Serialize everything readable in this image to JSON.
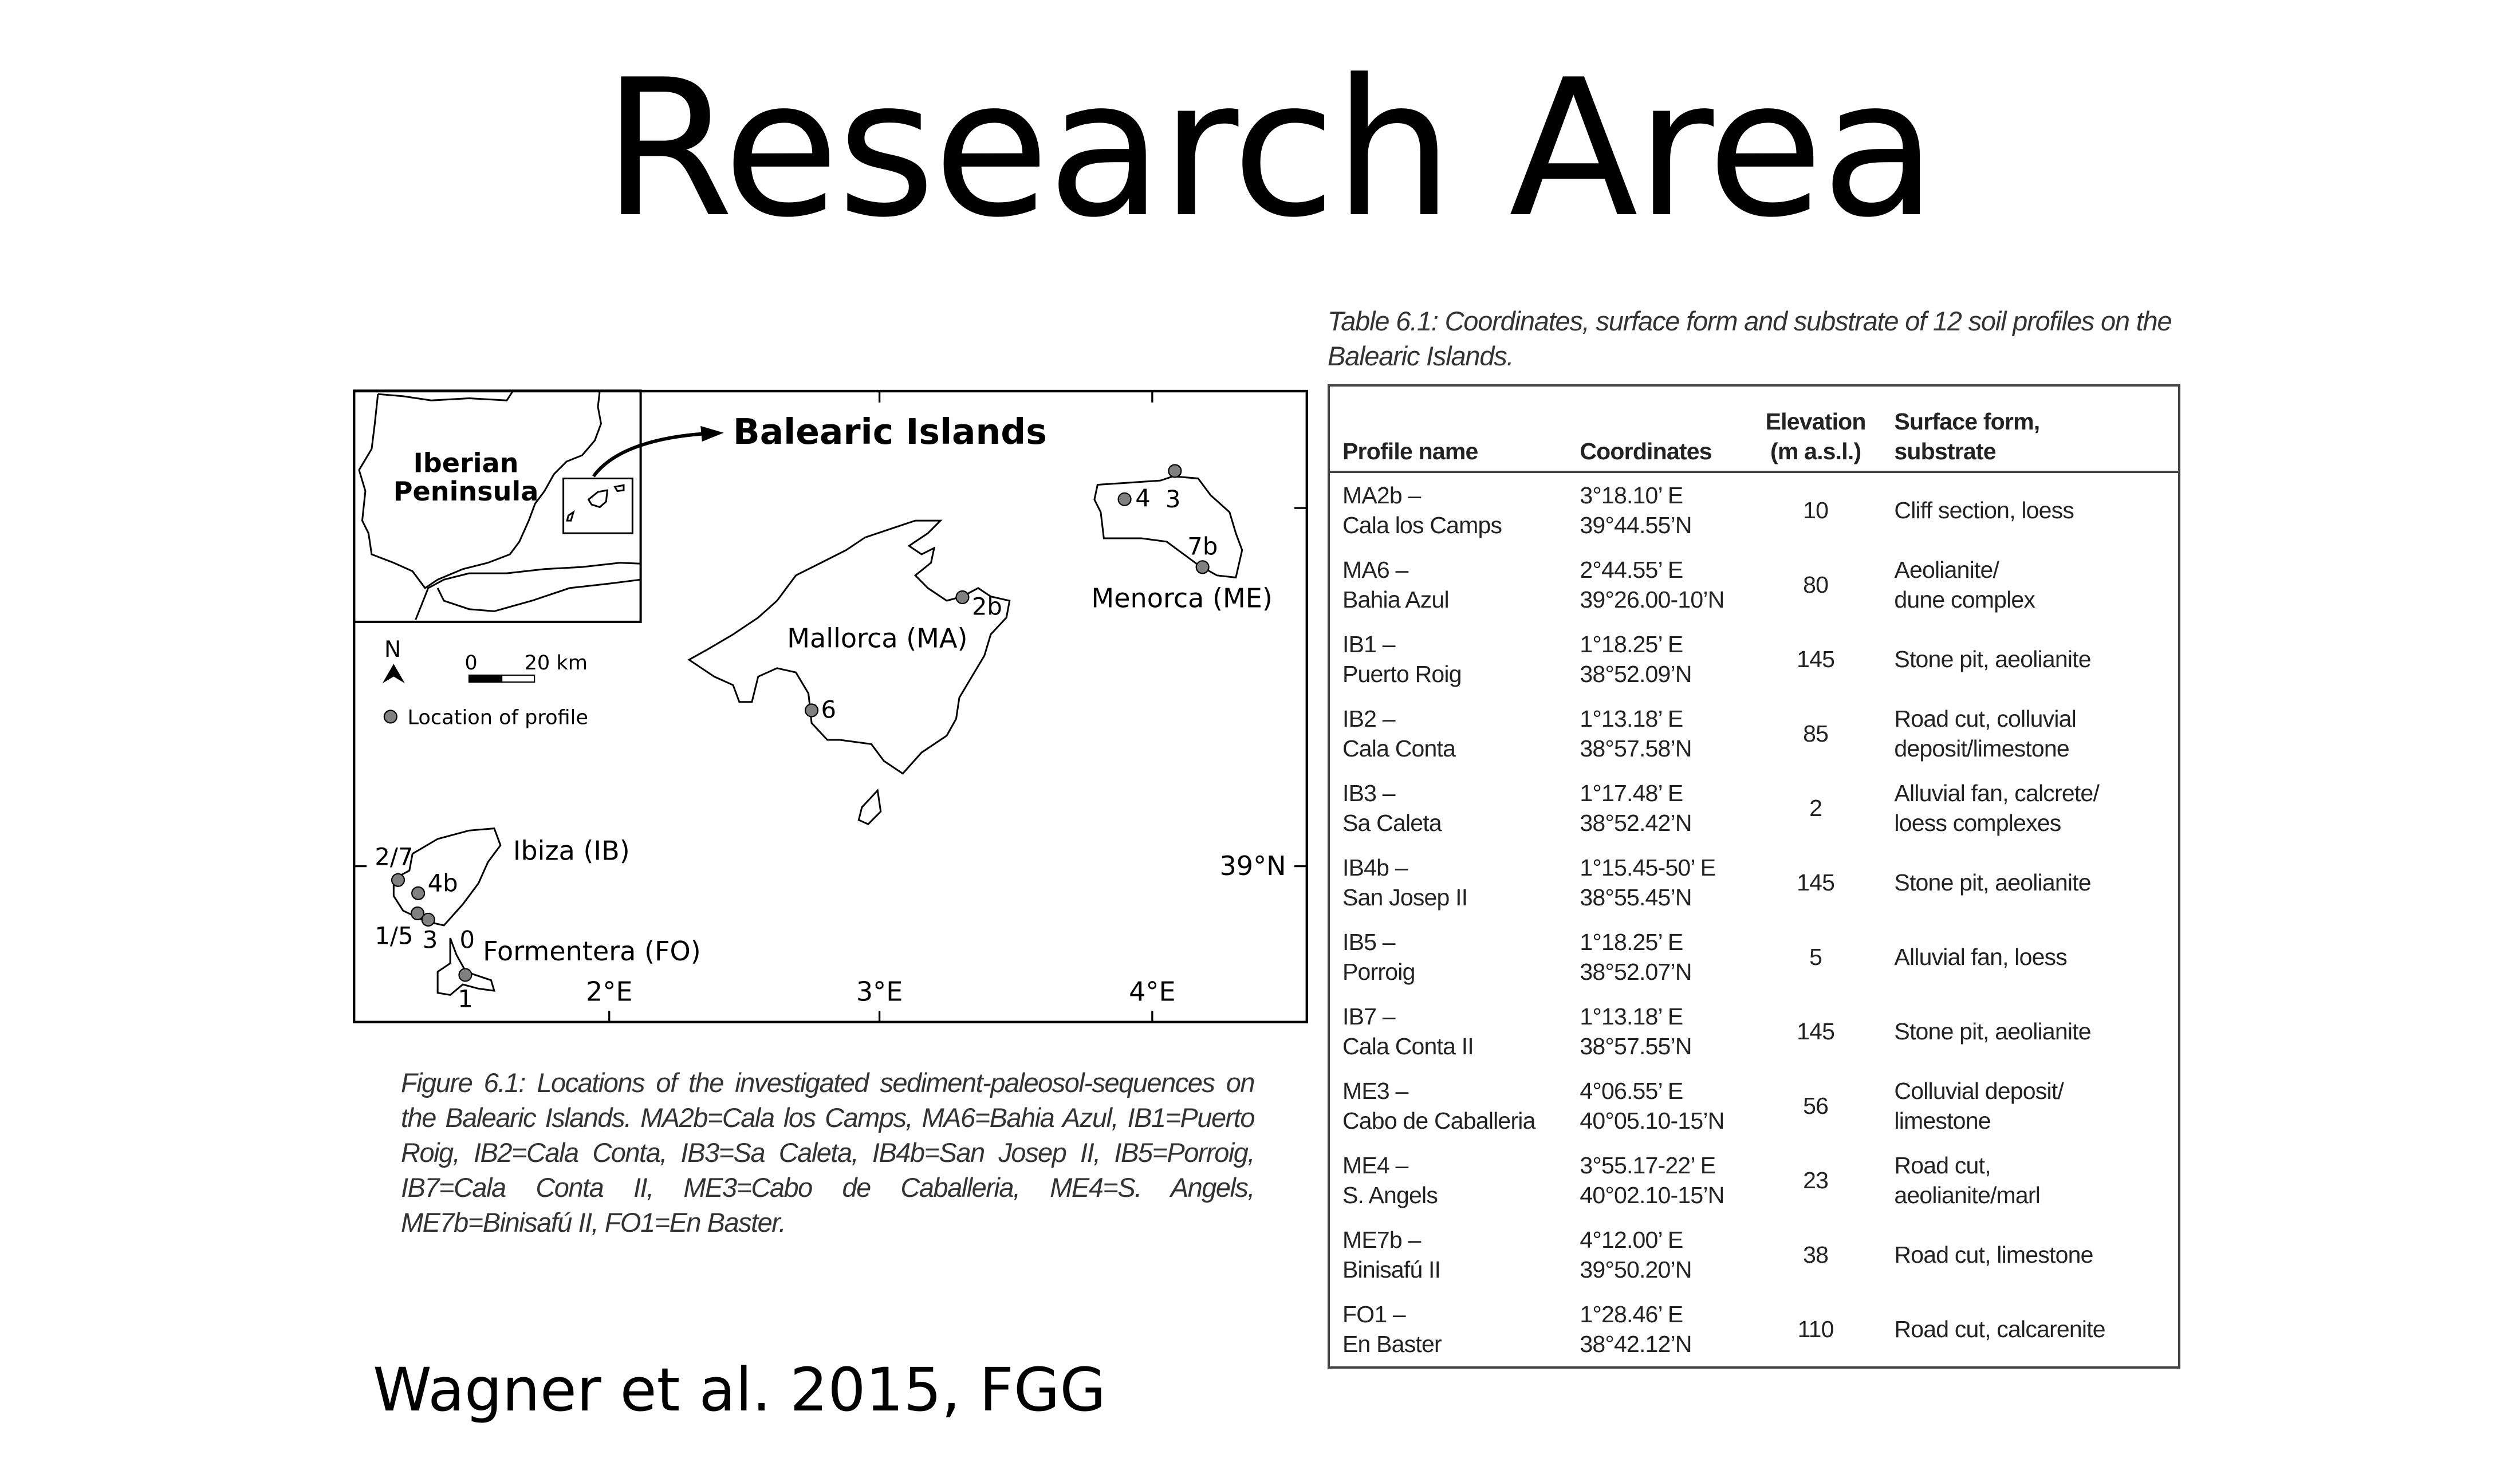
{
  "title": "Research Area",
  "map": {
    "inset_title_line1": "Iberian",
    "inset_title_line2": "Peninsula",
    "heading": "Balearic Islands",
    "north_label": "N",
    "scale_zero": "0",
    "scale_label": "20 km",
    "legend_label": "Location of profile",
    "islands": {
      "mallorca": "Mallorca (MA)",
      "menorca": "Menorca (ME)",
      "ibiza": "Ibiza (IB)",
      "formentera": "Formentera (FO)"
    },
    "points": {
      "p2b": "2b",
      "p6": "6",
      "p4": "4",
      "p3me": "3",
      "p7b": "7b",
      "p27": "2/7",
      "p4b": "4b",
      "p15": "1/5",
      "p3ib": "3",
      "p0": "0",
      "p1": "1"
    },
    "axes": {
      "lon2": "2°E",
      "lon3": "3°E",
      "lon4": "4°E",
      "lat39": "39°N"
    },
    "dot_color": "#808080"
  },
  "figure_caption": "Figure 6.1: Locations of the investigated sediment-paleosol-sequences on the Balearic Islands. MA2b=Cala los Camps, MA6=Bahia Azul, IB1=Puerto Roig, IB2=Cala Conta, IB3=Sa Caleta, IB4b=San Josep II, IB5=Porroig, IB7=Cala Conta II, ME3=Cabo de Caballeria, ME4=S. Angels, ME7b=Binisafú II, FO1=En Baster.",
  "table_caption": "Table 6.1: Coordinates, surface form and substrate of 12 soil profiles on the Balearic Islands.",
  "table": {
    "headers": {
      "profile": "Profile name",
      "coords": "Coordinates",
      "elev1": "Elevation",
      "elev2": "(m a.s.l.)",
      "surface1": "Surface form,",
      "surface2": "substrate"
    },
    "rows": [
      {
        "code": "MA2b –",
        "name": "Cala los Camps",
        "lon": "3°18.10’ E",
        "lat": "39°44.55’N",
        "elev": "10",
        "s1": "Cliff section, loess",
        "s2": ""
      },
      {
        "code": "MA6 –",
        "name": "Bahia Azul",
        "lon": "2°44.55’ E",
        "lat": "39°26.00-10’N",
        "elev": "80",
        "s1": "Aeolianite/",
        "s2": "dune complex"
      },
      {
        "code": "IB1 –",
        "name": "Puerto Roig",
        "lon": "1°18.25’ E",
        "lat": "38°52.09’N",
        "elev": "145",
        "s1": "Stone pit, aeolianite",
        "s2": ""
      },
      {
        "code": "IB2 –",
        "name": "Cala Conta",
        "lon": "1°13.18’ E",
        "lat": "38°57.58’N",
        "elev": "85",
        "s1": "Road cut, colluvial",
        "s2": "deposit/limestone"
      },
      {
        "code": "IB3 –",
        "name": "Sa Caleta",
        "lon": "1°17.48’ E",
        "lat": "38°52.42’N",
        "elev": "2",
        "s1": "Alluvial fan, calcrete/",
        "s2": "loess complexes"
      },
      {
        "code": "IB4b –",
        "name": "San Josep II",
        "lon": "1°15.45-50’ E",
        "lat": "38°55.45’N",
        "elev": "145",
        "s1": "Stone pit, aeolianite",
        "s2": ""
      },
      {
        "code": "IB5 –",
        "name": "Porroig",
        "lon": "1°18.25’ E",
        "lat": "38°52.07’N",
        "elev": "5",
        "s1": "Alluvial fan, loess",
        "s2": ""
      },
      {
        "code": "IB7 –",
        "name": "Cala Conta II",
        "lon": "1°13.18’ E",
        "lat": "38°57.55’N",
        "elev": "145",
        "s1": "Stone pit, aeolianite",
        "s2": ""
      },
      {
        "code": "ME3 –",
        "name": "Cabo de Caballeria",
        "lon": "4°06.55’ E",
        "lat": "40°05.10-15’N",
        "elev": "56",
        "s1": "Colluvial deposit/",
        "s2": "limestone"
      },
      {
        "code": "ME4 –",
        "name": "S. Angels",
        "lon": "3°55.17-22’ E",
        "lat": "40°02.10-15’N",
        "elev": "23",
        "s1": "Road cut,",
        "s2": "aeolianite/marl"
      },
      {
        "code": "ME7b –",
        "name": "Binisafú II",
        "lon": "4°12.00’ E",
        "lat": "39°50.20’N",
        "elev": "38",
        "s1": "Road cut, limestone",
        "s2": ""
      },
      {
        "code": "FO1 –",
        "name": "En Baster",
        "lon": "1°28.46’ E",
        "lat": "38°42.12’N",
        "elev": "110",
        "s1": "Road cut, calcarenite",
        "s2": ""
      }
    ]
  },
  "footer": "Wagner et al. 2015, FGG"
}
